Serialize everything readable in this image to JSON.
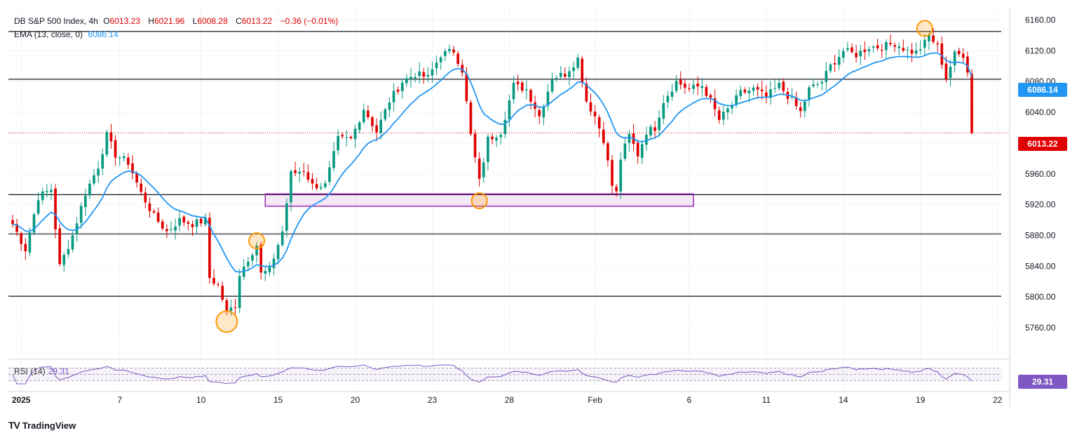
{
  "legend": {
    "symbol": "DB S&P 500 Index, 4h",
    "open_label": "O",
    "open": "6013.23",
    "high_label": "H",
    "high": "6021.96",
    "low_label": "L",
    "low": "6008.28",
    "close_label": "C",
    "close": "6013.22",
    "change": "−0.36 (−0.01%)",
    "ema_label": "EMA (13, close, 0)",
    "ema_value": "6086.14"
  },
  "rsi_legend": {
    "label": "RSI (14)",
    "value": "29.31"
  },
  "price_tags": {
    "ema": "6086.14",
    "last": "6013.22",
    "rsi": "29.31"
  },
  "footer": {
    "logo": "TV",
    "brand": "TradingView"
  },
  "colors": {
    "up": "#089981",
    "down": "#e00000",
    "ema": "#2196f3",
    "rsi": "#7e57c2",
    "zone": "#9c27b0"
  },
  "chart_data": {
    "type": "candlestick",
    "y_ticks": [
      6160,
      6120,
      6080,
      6040,
      6000,
      5960,
      5920,
      5880,
      5840,
      5800,
      5760
    ],
    "ylim": [
      5730,
      6175
    ],
    "x_ticks": [
      {
        "label": "2025",
        "i": 2
      },
      {
        "label": "7",
        "i": 25
      },
      {
        "label": "10",
        "i": 44
      },
      {
        "label": "15",
        "i": 62
      },
      {
        "label": "20",
        "i": 80
      },
      {
        "label": "23",
        "i": 98
      },
      {
        "label": "28",
        "i": 116
      },
      {
        "label": "Feb",
        "i": 136
      },
      {
        "label": "6",
        "i": 158
      },
      {
        "label": "11",
        "i": 176
      },
      {
        "label": "14",
        "i": 194
      },
      {
        "label": "19",
        "i": 212
      },
      {
        "label": "22",
        "i": 230
      }
    ],
    "horizontal_levels": [
      6145,
      6083,
      5933,
      5882,
      5801
    ],
    "current_price_line": 6013.22,
    "zone": {
      "i_start": 59,
      "i_end": 159,
      "y_low": 5918,
      "y_high": 5934
    },
    "highlight_circles": [
      {
        "i": 50,
        "y": 5768
      },
      {
        "i": 57,
        "y": 5873
      },
      {
        "i": 109,
        "y": 5925
      },
      {
        "i": 213,
        "y": 6149
      }
    ],
    "anchors": [
      [
        0,
        5895
      ],
      [
        3,
        5862
      ],
      [
        6,
        5930
      ],
      [
        9,
        5940
      ],
      [
        11,
        5840
      ],
      [
        14,
        5880
      ],
      [
        17,
        5935
      ],
      [
        20,
        5970
      ],
      [
        22,
        6010
      ],
      [
        24,
        5985
      ],
      [
        27,
        5975
      ],
      [
        30,
        5935
      ],
      [
        33,
        5905
      ],
      [
        36,
        5885
      ],
      [
        39,
        5900
      ],
      [
        42,
        5895
      ],
      [
        45,
        5900
      ],
      [
        46,
        5825
      ],
      [
        48,
        5815
      ],
      [
        50,
        5780
      ],
      [
        52,
        5790
      ],
      [
        53,
        5830
      ],
      [
        55,
        5850
      ],
      [
        57,
        5868
      ],
      [
        58,
        5830
      ],
      [
        60,
        5835
      ],
      [
        63,
        5885
      ],
      [
        65,
        5960
      ],
      [
        68,
        5965
      ],
      [
        70,
        5945
      ],
      [
        73,
        5945
      ],
      [
        76,
        6005
      ],
      [
        79,
        6005
      ],
      [
        82,
        6045
      ],
      [
        85,
        6015
      ],
      [
        88,
        6055
      ],
      [
        91,
        6080
      ],
      [
        94,
        6090
      ],
      [
        97,
        6085
      ],
      [
        100,
        6115
      ],
      [
        103,
        6120
      ],
      [
        105,
        6095
      ],
      [
        107,
        6010
      ],
      [
        109,
        5950
      ],
      [
        111,
        6005
      ],
      [
        114,
        6015
      ],
      [
        117,
        6075
      ],
      [
        120,
        6070
      ],
      [
        123,
        6035
      ],
      [
        126,
        6085
      ],
      [
        129,
        6090
      ],
      [
        132,
        6110
      ],
      [
        134,
        6055
      ],
      [
        136,
        6035
      ],
      [
        138,
        6005
      ],
      [
        140,
        5945
      ],
      [
        141,
        5935
      ],
      [
        142,
        5980
      ],
      [
        144,
        6010
      ],
      [
        146,
        5985
      ],
      [
        148,
        6015
      ],
      [
        150,
        6020
      ],
      [
        152,
        6055
      ],
      [
        155,
        6080
      ],
      [
        158,
        6070
      ],
      [
        161,
        6075
      ],
      [
        163,
        6055
      ],
      [
        165,
        6030
      ],
      [
        168,
        6050
      ],
      [
        170,
        6065
      ],
      [
        173,
        6070
      ],
      [
        176,
        6060
      ],
      [
        179,
        6075
      ],
      [
        182,
        6055
      ],
      [
        184,
        6040
      ],
      [
        186,
        6070
      ],
      [
        189,
        6080
      ],
      [
        191,
        6100
      ],
      [
        194,
        6120
      ],
      [
        197,
        6115
      ],
      [
        200,
        6125
      ],
      [
        203,
        6125
      ],
      [
        206,
        6130
      ],
      [
        209,
        6120
      ],
      [
        211,
        6118
      ],
      [
        213,
        6130
      ],
      [
        214,
        6140
      ],
      [
        216,
        6125
      ],
      [
        218,
        6085
      ],
      [
        220,
        6115
      ],
      [
        222,
        6115
      ],
      [
        223,
        6095
      ],
      [
        224,
        6013
      ]
    ],
    "ema_period": 13,
    "ema_last": 6086.14,
    "rsi_last": 29.31,
    "candle_count": 225
  }
}
